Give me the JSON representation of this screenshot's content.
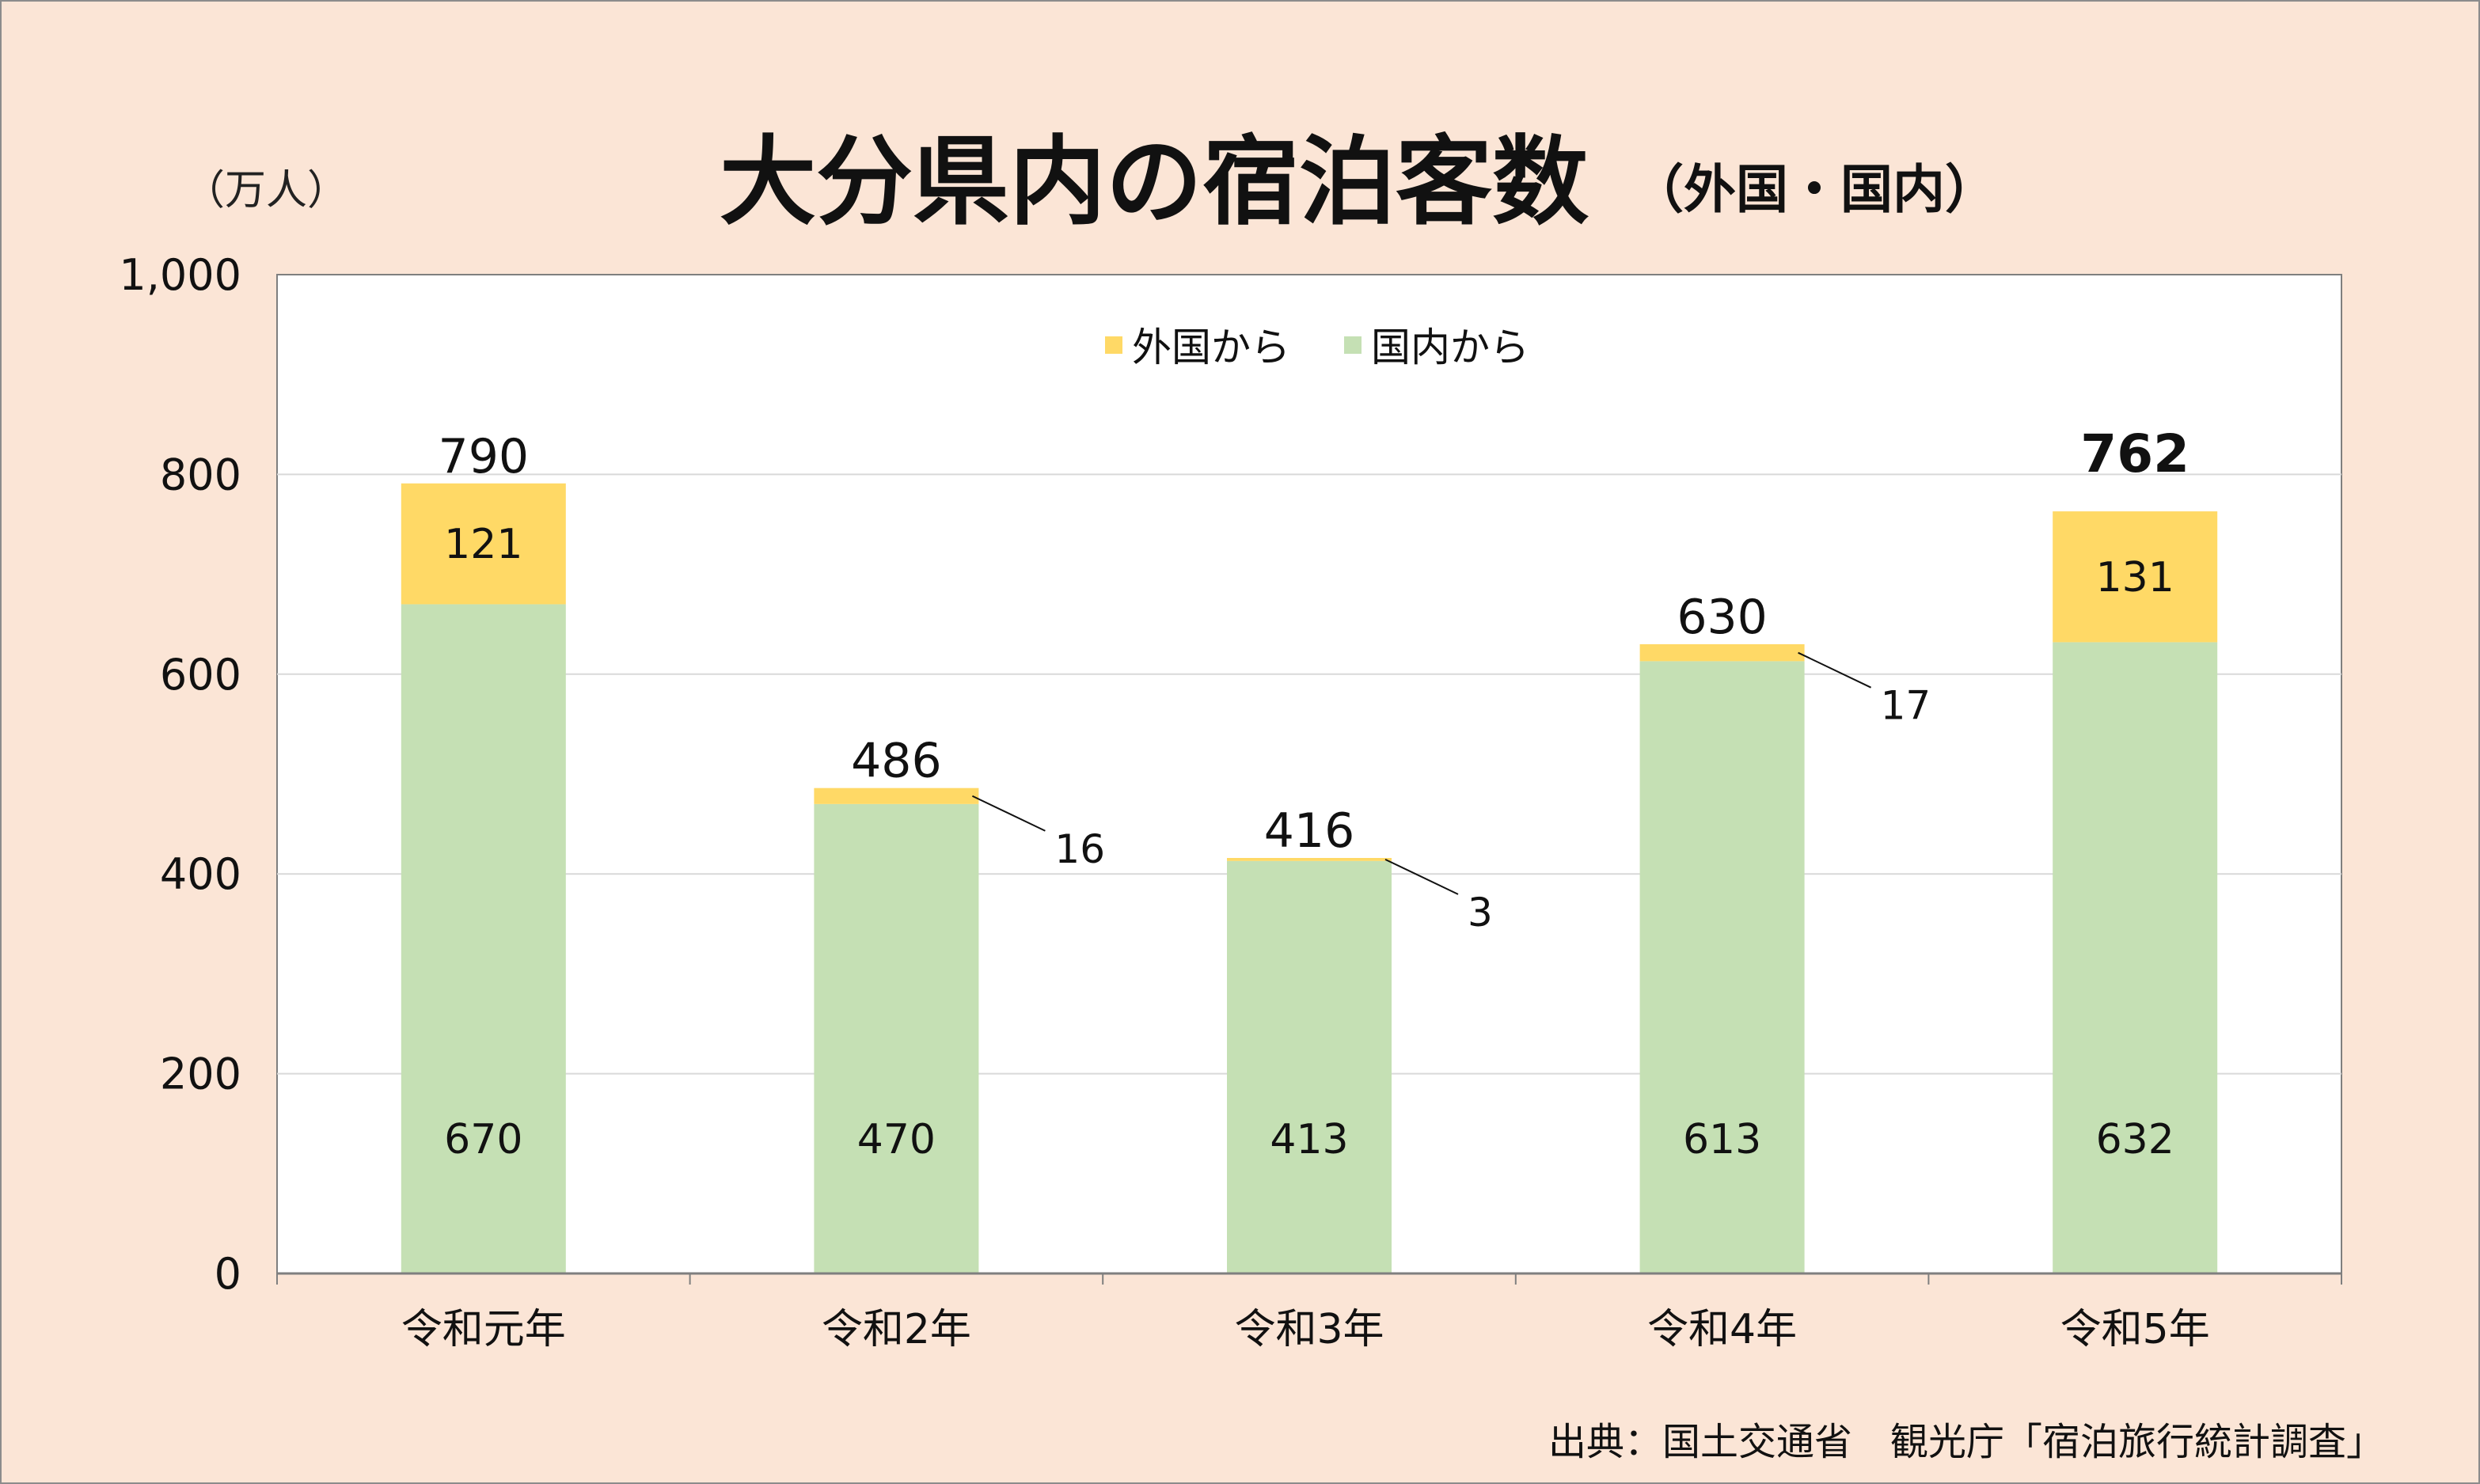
{
  "chart_data": {
    "type": "bar",
    "stacked": true,
    "title": "大分県内の宿泊客数",
    "subtitle": "（外国・国内）",
    "unit_label": "（万人）",
    "ylim": [
      0,
      1000
    ],
    "yticks": [
      0,
      200,
      400,
      600,
      800,
      1000
    ],
    "ytick_labels": [
      "0",
      "200",
      "400",
      "600",
      "800",
      "1,000"
    ],
    "grid": true,
    "legend_position": "top-center",
    "categories": [
      "令和元年",
      "令和2年",
      "令和3年",
      "令和4年",
      "令和5年"
    ],
    "series": [
      {
        "name": "国内から",
        "color": "#c5e0b4",
        "values": [
          670,
          470,
          413,
          613,
          632
        ]
      },
      {
        "name": "外国から",
        "color": "#ffd966",
        "values": [
          121,
          16,
          3,
          17,
          131
        ]
      }
    ],
    "totals": [
      790,
      486,
      416,
      630,
      762
    ],
    "highlight_total_index": 4,
    "source": "出典：国土交通省　観光庁「宿泊旅行統計調査」"
  },
  "legend": [
    {
      "label": "外国から",
      "color": "#ffd966"
    },
    {
      "label": "国内から",
      "color": "#c5e0b4"
    }
  ],
  "colors": {
    "background": "#fbe5d6",
    "plot_background": "#ffffff",
    "gridline": "#d9d9d9",
    "axis": "#7f7f7f"
  }
}
